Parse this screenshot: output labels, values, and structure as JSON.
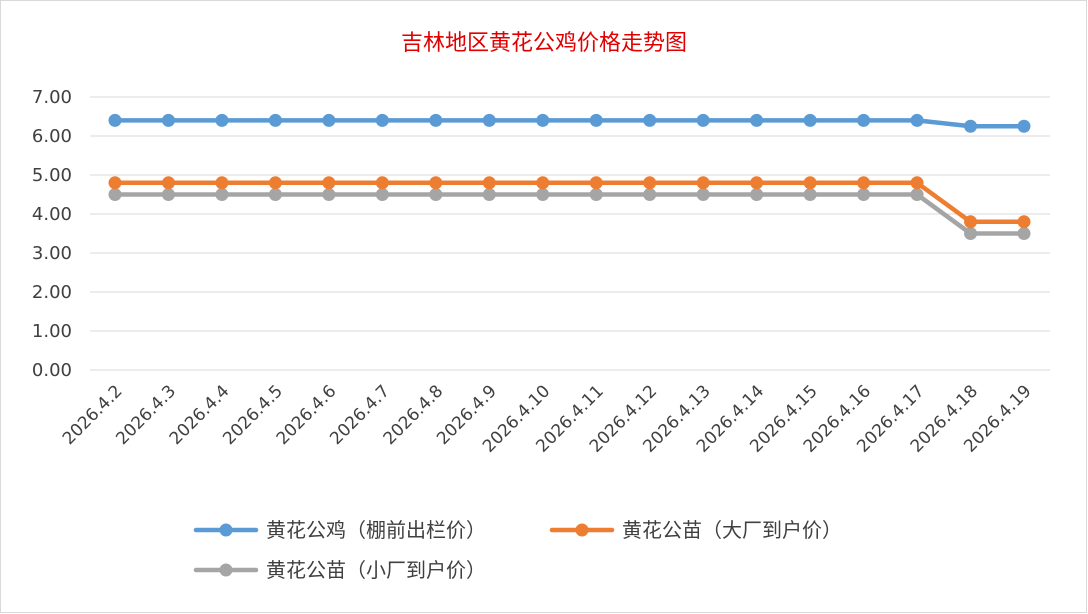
{
  "chart_data": {
    "type": "line",
    "title": "吉林地区黄花公鸡价格走势图",
    "xlabel": "",
    "ylabel": "",
    "categories": [
      "2026.4.2",
      "2026.4.3",
      "2026.4.4",
      "2026.4.5",
      "2026.4.6",
      "2026.4.7",
      "2026.4.8",
      "2026.4.9",
      "2026.4.10",
      "2026.4.11",
      "2026.4.12",
      "2026.4.13",
      "2026.4.14",
      "2026.4.15",
      "2026.4.16",
      "2026.4.17",
      "2026.4.18",
      "2026.4.19"
    ],
    "ylim": [
      0,
      7
    ],
    "yticks": [
      "0.00",
      "1.00",
      "2.00",
      "3.00",
      "4.00",
      "5.00",
      "6.00",
      "7.00"
    ],
    "grid": "horizontal",
    "legend_position": "bottom",
    "series": [
      {
        "name": "黄花公鸡（棚前出栏价）",
        "color": "#5b9bd5",
        "values": [
          6.4,
          6.4,
          6.4,
          6.4,
          6.4,
          6.4,
          6.4,
          6.4,
          6.4,
          6.4,
          6.4,
          6.4,
          6.4,
          6.4,
          6.4,
          6.4,
          6.25,
          6.25
        ]
      },
      {
        "name": "黄花公苗（大厂到户价）",
        "color": "#ed7d31",
        "values": [
          4.8,
          4.8,
          4.8,
          4.8,
          4.8,
          4.8,
          4.8,
          4.8,
          4.8,
          4.8,
          4.8,
          4.8,
          4.8,
          4.8,
          4.8,
          4.8,
          3.8,
          3.8
        ]
      },
      {
        "name": "黄花公苗（小厂到户价）",
        "color": "#a5a5a5",
        "values": [
          4.5,
          4.5,
          4.5,
          4.5,
          4.5,
          4.5,
          4.5,
          4.5,
          4.5,
          4.5,
          4.5,
          4.5,
          4.5,
          4.5,
          4.5,
          4.5,
          3.5,
          3.5
        ]
      }
    ]
  }
}
